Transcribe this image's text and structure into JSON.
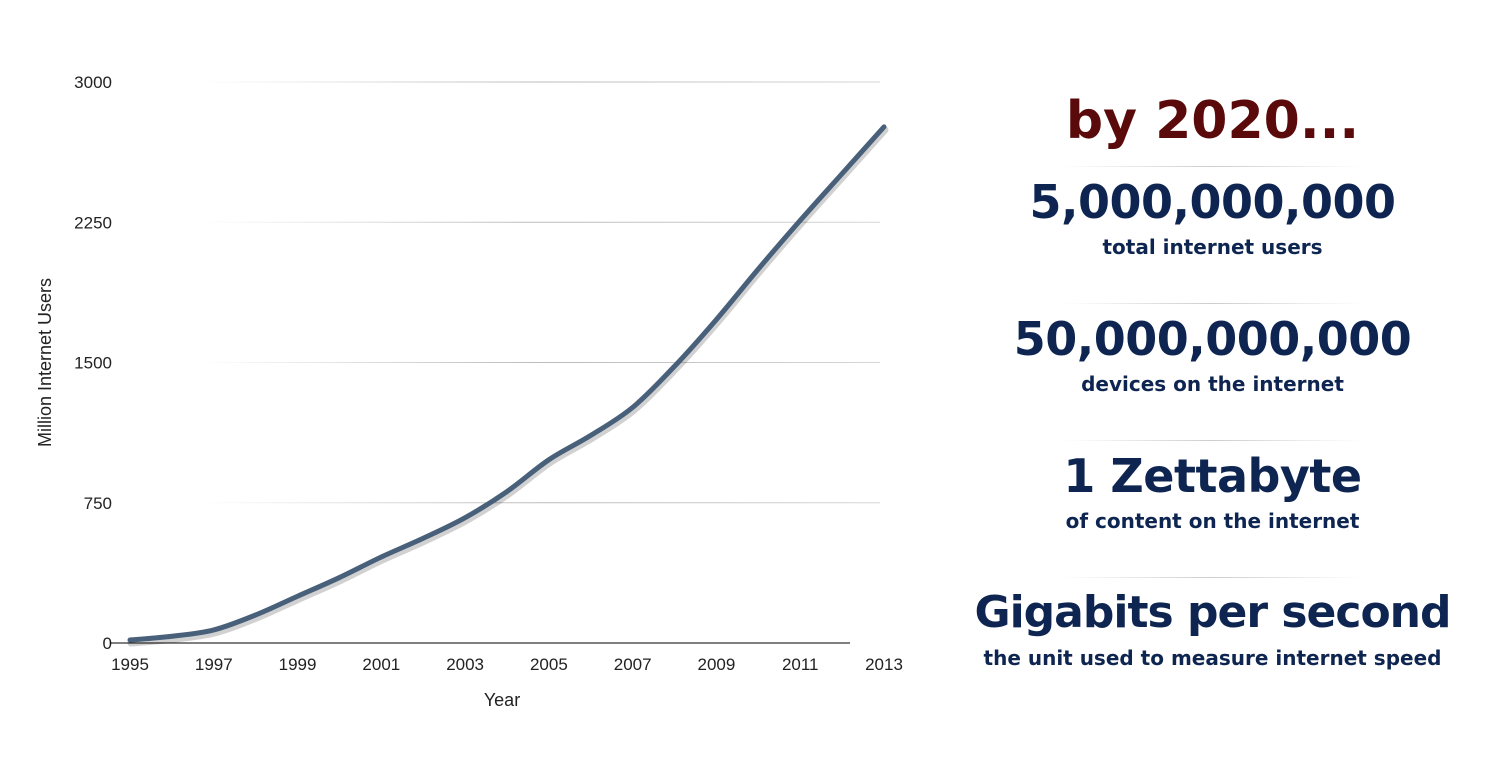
{
  "chart_data": {
    "type": "line",
    "title": "",
    "xlabel": "Year",
    "ylabel": "Million Internet Users",
    "ylim": [
      0,
      3000
    ],
    "yticks": [
      0,
      750,
      1500,
      2250,
      3000
    ],
    "xlim": [
      1995,
      2013
    ],
    "xticks": [
      1995,
      1997,
      1999,
      2001,
      2003,
      2005,
      2007,
      2009,
      2011,
      2013
    ],
    "grid": true,
    "legend": "none",
    "series": [
      {
        "color": "#48607a",
        "x": [
          1995,
          1996,
          1997,
          1998,
          1999,
          2000,
          2001,
          2002,
          2003,
          2004,
          2005,
          2006,
          2007,
          2008,
          2009,
          2010,
          2011,
          2012,
          2013
        ],
        "y": [
          16,
          36,
          70,
          150,
          250,
          350,
          460,
          560,
          670,
          810,
          980,
          1110,
          1260,
          1480,
          1730,
          2000,
          2260,
          2510,
          2760
        ]
      }
    ]
  },
  "panel": {
    "headline": "by 2020...",
    "headline_color": "#5a0a0a",
    "text_color": "#0d2550",
    "facts": [
      {
        "big": "5,000,000,000",
        "sub": "total internet users"
      },
      {
        "big": "50,000,000,000",
        "sub": "devices on the internet"
      },
      {
        "big": "1 Zettabyte",
        "sub": "of content on the internet"
      },
      {
        "big": "Gigabits per second",
        "sub": "the unit used to measure internet speed"
      }
    ]
  }
}
